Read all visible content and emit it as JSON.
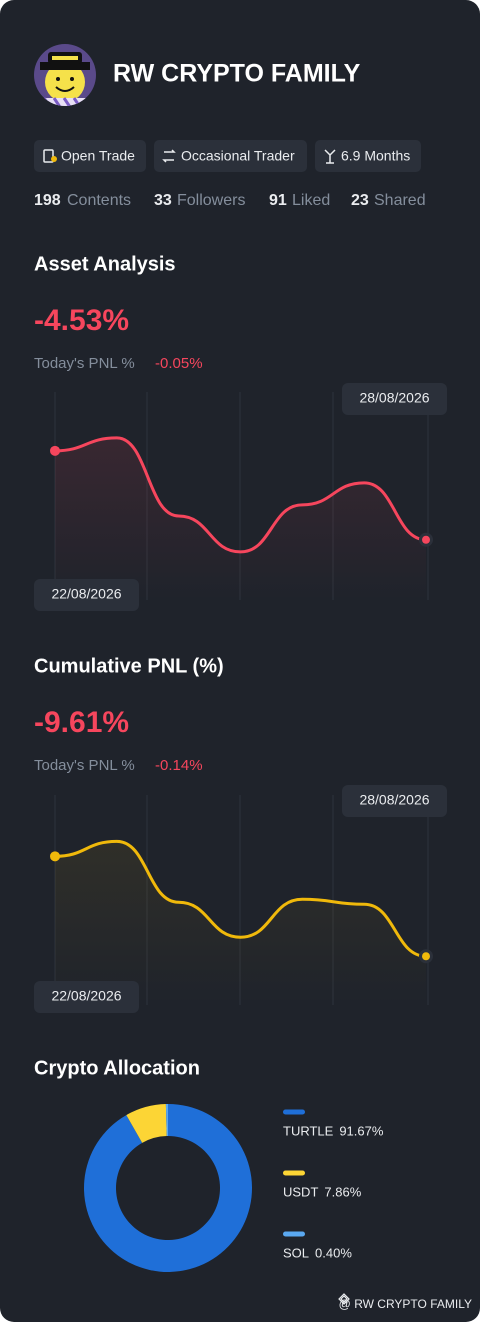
{
  "profile": {
    "name": "RW CRYPTO FAMILY"
  },
  "tags": [
    "Open Trade",
    "Occasional Trader",
    "6.9 Months"
  ],
  "stats": [
    {
      "value": 198,
      "label": "Contents"
    },
    {
      "value": 33,
      "label": "Followers"
    },
    {
      "value": 91,
      "label": "Liked"
    },
    {
      "value": 23,
      "label": "Shared"
    }
  ],
  "chart_data": [
    {
      "type": "line",
      "title": "Asset Analysis",
      "headline": "-4.53%",
      "today_label": "Today's PNL %",
      "today_value": "-0.05%",
      "categories": [
        "22/08/2026",
        null,
        null,
        null,
        null,
        null,
        "28/08/2026"
      ],
      "values": [
        0,
        0.66,
        -3.32,
        -5.15,
        -2.75,
        -1.63,
        -4.53
      ],
      "color": "#f6465d",
      "ylim": [
        -7.6,
        3.1
      ]
    },
    {
      "type": "line",
      "title": "Cumulative PNL (%)",
      "headline": "-9.61%",
      "today_label": "Today's PNL %",
      "today_value": "-0.14%",
      "categories": [
        "22/08/2026",
        null,
        null,
        null,
        null,
        null,
        "28/08/2026"
      ],
      "values": [
        0,
        1.44,
        -4.42,
        -7.78,
        -4.13,
        -4.61,
        -9.61
      ],
      "color": "#f0b90b",
      "ylim": [
        -14.3,
        5.9
      ]
    },
    {
      "type": "pie",
      "title": "Crypto Allocation",
      "categories": [
        "TURTLE",
        "USDT",
        "SOL"
      ],
      "values": [
        91.67,
        7.86,
        0.4
      ],
      "value_labels": [
        "91.67%",
        "7.86%",
        "0.40%"
      ],
      "colors": [
        "#1f6fd8",
        "#fcd535",
        "#5aa8f0"
      ]
    }
  ],
  "footer": "@ RW CRYPTO FAMILY"
}
